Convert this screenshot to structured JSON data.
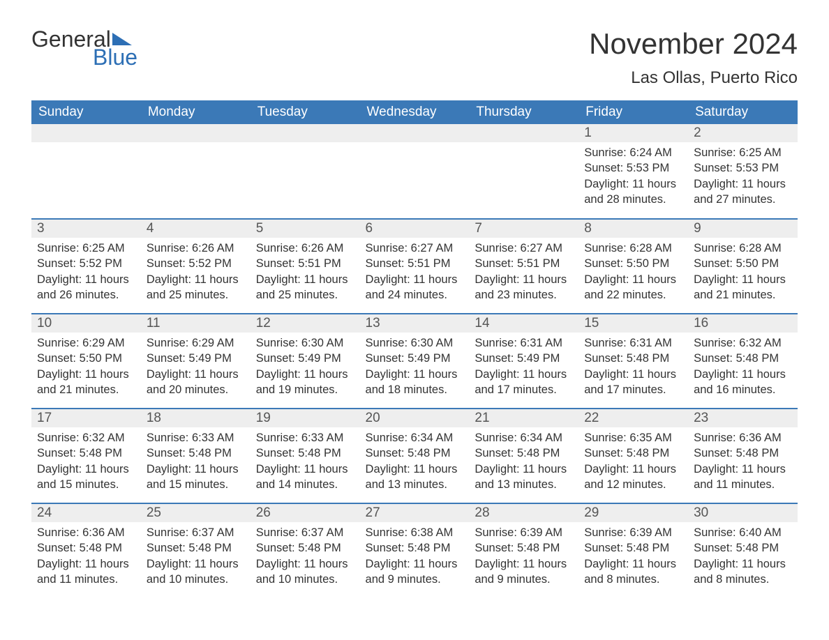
{
  "brand": {
    "word1": "General",
    "word2": "Blue",
    "accent_color": "#2d6fb5"
  },
  "header": {
    "month_title": "November 2024",
    "location": "Las Ollas, Puerto Rico"
  },
  "colors": {
    "header_bg": "#3b79b7",
    "header_text": "#ffffff",
    "daynum_bg": "#eeeeee",
    "row_border": "#3b79b7",
    "body_text": "#333333",
    "page_bg": "#ffffff"
  },
  "typography": {
    "month_title_fontsize": 42,
    "location_fontsize": 24,
    "weekday_fontsize": 19,
    "daynum_fontsize": 19,
    "cell_fontsize": 16.5
  },
  "calendar": {
    "columns": [
      "Sunday",
      "Monday",
      "Tuesday",
      "Wednesday",
      "Thursday",
      "Friday",
      "Saturday"
    ],
    "leading_blanks": 5,
    "days": [
      {
        "n": 1,
        "sunrise": "6:24 AM",
        "sunset": "5:53 PM",
        "daylight": "11 hours and 28 minutes."
      },
      {
        "n": 2,
        "sunrise": "6:25 AM",
        "sunset": "5:53 PM",
        "daylight": "11 hours and 27 minutes."
      },
      {
        "n": 3,
        "sunrise": "6:25 AM",
        "sunset": "5:52 PM",
        "daylight": "11 hours and 26 minutes."
      },
      {
        "n": 4,
        "sunrise": "6:26 AM",
        "sunset": "5:52 PM",
        "daylight": "11 hours and 25 minutes."
      },
      {
        "n": 5,
        "sunrise": "6:26 AM",
        "sunset": "5:51 PM",
        "daylight": "11 hours and 25 minutes."
      },
      {
        "n": 6,
        "sunrise": "6:27 AM",
        "sunset": "5:51 PM",
        "daylight": "11 hours and 24 minutes."
      },
      {
        "n": 7,
        "sunrise": "6:27 AM",
        "sunset": "5:51 PM",
        "daylight": "11 hours and 23 minutes."
      },
      {
        "n": 8,
        "sunrise": "6:28 AM",
        "sunset": "5:50 PM",
        "daylight": "11 hours and 22 minutes."
      },
      {
        "n": 9,
        "sunrise": "6:28 AM",
        "sunset": "5:50 PM",
        "daylight": "11 hours and 21 minutes."
      },
      {
        "n": 10,
        "sunrise": "6:29 AM",
        "sunset": "5:50 PM",
        "daylight": "11 hours and 21 minutes."
      },
      {
        "n": 11,
        "sunrise": "6:29 AM",
        "sunset": "5:49 PM",
        "daylight": "11 hours and 20 minutes."
      },
      {
        "n": 12,
        "sunrise": "6:30 AM",
        "sunset": "5:49 PM",
        "daylight": "11 hours and 19 minutes."
      },
      {
        "n": 13,
        "sunrise": "6:30 AM",
        "sunset": "5:49 PM",
        "daylight": "11 hours and 18 minutes."
      },
      {
        "n": 14,
        "sunrise": "6:31 AM",
        "sunset": "5:49 PM",
        "daylight": "11 hours and 17 minutes."
      },
      {
        "n": 15,
        "sunrise": "6:31 AM",
        "sunset": "5:48 PM",
        "daylight": "11 hours and 17 minutes."
      },
      {
        "n": 16,
        "sunrise": "6:32 AM",
        "sunset": "5:48 PM",
        "daylight": "11 hours and 16 minutes."
      },
      {
        "n": 17,
        "sunrise": "6:32 AM",
        "sunset": "5:48 PM",
        "daylight": "11 hours and 15 minutes."
      },
      {
        "n": 18,
        "sunrise": "6:33 AM",
        "sunset": "5:48 PM",
        "daylight": "11 hours and 15 minutes."
      },
      {
        "n": 19,
        "sunrise": "6:33 AM",
        "sunset": "5:48 PM",
        "daylight": "11 hours and 14 minutes."
      },
      {
        "n": 20,
        "sunrise": "6:34 AM",
        "sunset": "5:48 PM",
        "daylight": "11 hours and 13 minutes."
      },
      {
        "n": 21,
        "sunrise": "6:34 AM",
        "sunset": "5:48 PM",
        "daylight": "11 hours and 13 minutes."
      },
      {
        "n": 22,
        "sunrise": "6:35 AM",
        "sunset": "5:48 PM",
        "daylight": "11 hours and 12 minutes."
      },
      {
        "n": 23,
        "sunrise": "6:36 AM",
        "sunset": "5:48 PM",
        "daylight": "11 hours and 11 minutes."
      },
      {
        "n": 24,
        "sunrise": "6:36 AM",
        "sunset": "5:48 PM",
        "daylight": "11 hours and 11 minutes."
      },
      {
        "n": 25,
        "sunrise": "6:37 AM",
        "sunset": "5:48 PM",
        "daylight": "11 hours and 10 minutes."
      },
      {
        "n": 26,
        "sunrise": "6:37 AM",
        "sunset": "5:48 PM",
        "daylight": "11 hours and 10 minutes."
      },
      {
        "n": 27,
        "sunrise": "6:38 AM",
        "sunset": "5:48 PM",
        "daylight": "11 hours and 9 minutes."
      },
      {
        "n": 28,
        "sunrise": "6:39 AM",
        "sunset": "5:48 PM",
        "daylight": "11 hours and 9 minutes."
      },
      {
        "n": 29,
        "sunrise": "6:39 AM",
        "sunset": "5:48 PM",
        "daylight": "11 hours and 8 minutes."
      },
      {
        "n": 30,
        "sunrise": "6:40 AM",
        "sunset": "5:48 PM",
        "daylight": "11 hours and 8 minutes."
      }
    ],
    "labels": {
      "sunrise": "Sunrise:",
      "sunset": "Sunset:",
      "daylight": "Daylight:"
    }
  }
}
